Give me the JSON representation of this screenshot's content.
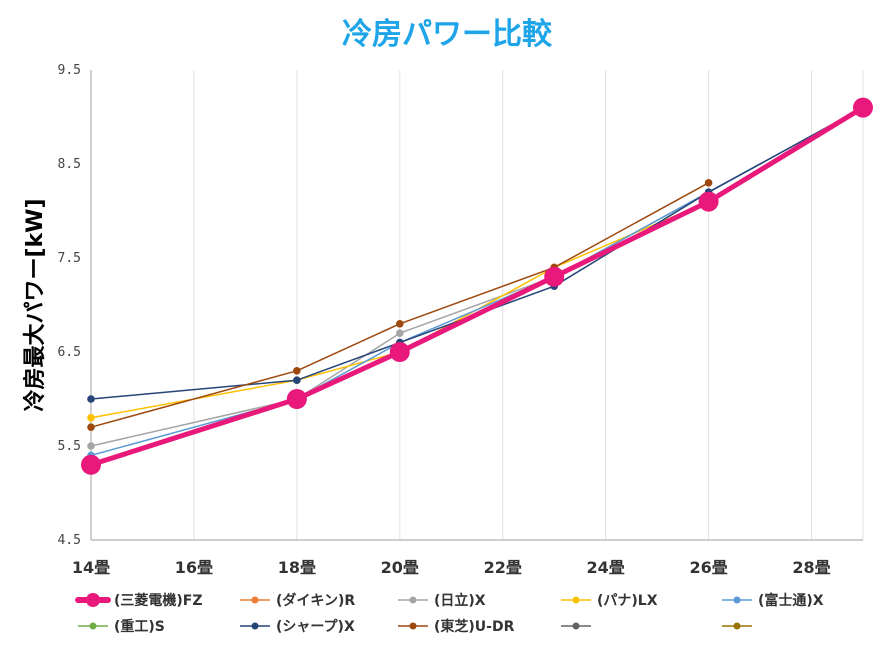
{
  "chart_data": {
    "type": "line",
    "title": "冷房パワー比較",
    "ylabel": "冷房最大パワー[kW]",
    "xlabel": "",
    "ylim": [
      4.5,
      9.5
    ],
    "yticks": [
      "4.5",
      "5.5",
      "6.5",
      "7.5",
      "8.5",
      "9.5"
    ],
    "xlim": [
      14,
      29
    ],
    "xticks": [
      "14畳",
      "16畳",
      "18畳",
      "20畳",
      "22畳",
      "24畳",
      "26畳",
      "28畳"
    ],
    "grid": "vertical",
    "legend": "bottom",
    "series": [
      {
        "name": "(三菱電機)FZ",
        "color": "#e8197a",
        "highlight": true,
        "x": [
          14,
          18,
          20,
          23,
          26,
          29
        ],
        "y": [
          5.3,
          6.0,
          6.5,
          7.3,
          8.1,
          9.1
        ]
      },
      {
        "name": "(ダイキン)R",
        "color": "#ed7d31",
        "x": [
          14,
          18,
          20,
          23,
          26,
          29
        ],
        "y": [
          5.3,
          6.0,
          6.5,
          7.3,
          8.1,
          9.1
        ]
      },
      {
        "name": "(日立)X",
        "color": "#a5a5a5",
        "x": [
          14,
          18,
          20,
          23,
          26,
          29
        ],
        "y": [
          5.5,
          6.0,
          6.7,
          7.3,
          8.2,
          9.1
        ]
      },
      {
        "name": "(パナ)LX",
        "color": "#ffc000",
        "x": [
          14,
          18,
          20,
          23,
          26,
          29
        ],
        "y": [
          5.8,
          6.2,
          6.5,
          7.4,
          8.1,
          9.1
        ]
      },
      {
        "name": "(富士通)X",
        "color": "#5b9bd5",
        "x": [
          14,
          18,
          20,
          23,
          26,
          29
        ],
        "y": [
          5.4,
          6.0,
          6.6,
          7.3,
          8.2,
          9.1
        ]
      },
      {
        "name": "(重工)S",
        "color": "#70ad47",
        "x": [
          14,
          18,
          20,
          23,
          26,
          29
        ],
        "y": [
          5.3,
          6.0,
          6.5,
          7.3,
          8.1,
          9.1
        ]
      },
      {
        "name": "(シャープ)X",
        "color": "#264478",
        "x": [
          14,
          18,
          20,
          23,
          26,
          29
        ],
        "y": [
          6.0,
          6.2,
          6.6,
          7.2,
          8.2,
          9.1
        ]
      },
      {
        "name": "(東芝)U-DR",
        "color": "#9e480e",
        "x": [
          14,
          18,
          20,
          23,
          26
        ],
        "y": [
          5.7,
          6.3,
          6.8,
          7.4,
          8.3
        ]
      },
      {
        "name": "",
        "color": "#636363",
        "x": [],
        "y": []
      },
      {
        "name": "",
        "color": "#997300",
        "x": [],
        "y": []
      }
    ]
  },
  "colors": {
    "title": "#1ea5e9",
    "axis": "#b0b0b0",
    "grid": "#e0e0e0"
  }
}
